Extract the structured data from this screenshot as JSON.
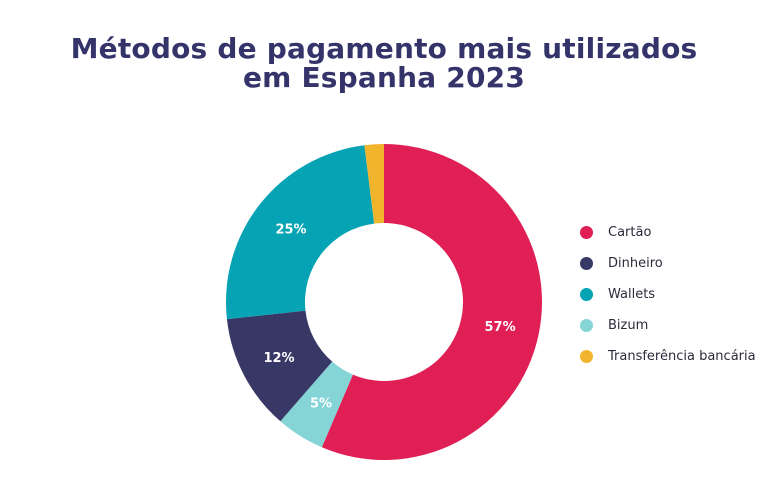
{
  "chart_data": {
    "type": "pie",
    "donut": true,
    "title": "Métodos de pagamento mais utilizados em Espanha 2023",
    "title_lines": [
      "Métodos de pagamento mais utilizados",
      "em Espanha 2023"
    ],
    "legend_position": "right",
    "series": [
      {
        "name": "Cartão",
        "value": 57,
        "label": "57%",
        "color": "#e01f55"
      },
      {
        "name": "Bizum",
        "value": 5,
        "label": "5%",
        "color": "#85d4d6"
      },
      {
        "name": "Dinheiro",
        "value": 12,
        "label": "12%",
        "color": "#383866"
      },
      {
        "name": "Wallets",
        "value": 25,
        "label": "25%",
        "color": "#05a3b3"
      },
      {
        "name": "Transferência bancária",
        "value": 2,
        "label": "",
        "color": "#f2b42d"
      }
    ],
    "legend": [
      {
        "label": "Cartão",
        "color": "#e01f55"
      },
      {
        "label": "Dinheiro",
        "color": "#383866"
      },
      {
        "label": "Wallets",
        "color": "#05a3b3"
      },
      {
        "label": "Bizum",
        "color": "#85d4d6"
      },
      {
        "label": "Transferência bancária",
        "color": "#f2b42d"
      }
    ]
  }
}
